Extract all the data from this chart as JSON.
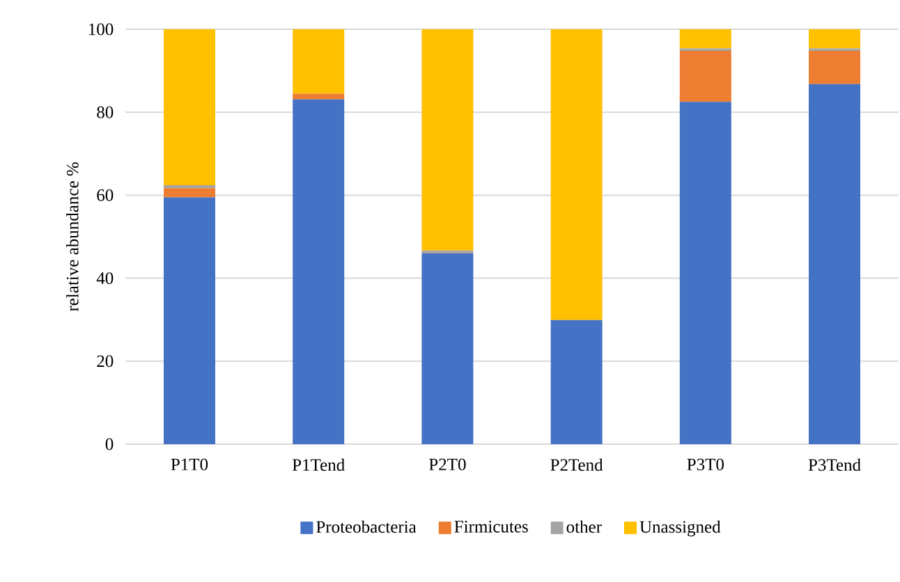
{
  "chart_data": {
    "type": "bar",
    "stacked": true,
    "ylabel": "relative abundance %",
    "categories": [
      "P1T0",
      "P1Tend",
      "P2T0",
      "P2Tend",
      "P3T0",
      "P3Tend"
    ],
    "series": [
      {
        "name": "Proteobacteria",
        "color": "#4472c4",
        "values": [
          59.5,
          83.1,
          46.0,
          29.9,
          82.5,
          86.8
        ]
      },
      {
        "name": "Firmicutes",
        "color": "#ed7d31",
        "values": [
          2.2,
          1.4,
          0.1,
          0,
          12.3,
          8.0
        ]
      },
      {
        "name": "other",
        "color": "#a5a5a5",
        "values": [
          0.7,
          null,
          0.6,
          0,
          0.6,
          0.6
        ]
      },
      {
        "name": "Unassigned",
        "color": "#ffc000",
        "values": [
          37.6,
          15.5,
          53.3,
          70.1,
          4.6,
          4.6
        ]
      }
    ],
    "ylim": [
      0,
      100
    ],
    "yticks": [
      0,
      20,
      40,
      60,
      80,
      100
    ],
    "grid": "y",
    "legend": "bottom"
  }
}
